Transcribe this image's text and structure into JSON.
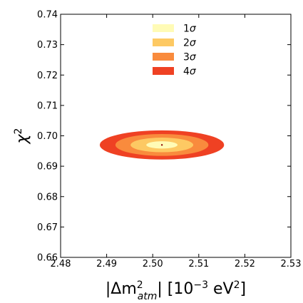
{
  "chart_data": {
    "type": "contour",
    "xlabel": {
      "pre": "|Δm",
      "sup": "2",
      "sub": "atm",
      "post": "| [10",
      "exp": "−3",
      "unit": " eV",
      "unit_sup": "2",
      "close": "]"
    },
    "ylabel": {
      "base": "χ",
      "sup": "2"
    },
    "xlim": [
      2.48,
      2.53
    ],
    "ylim": [
      0.66,
      0.74
    ],
    "xticks": [
      "2.48",
      "2.49",
      "2.50",
      "2.51",
      "2.52",
      "2.53"
    ],
    "yticks": [
      "0.66",
      "0.67",
      "0.68",
      "0.69",
      "0.70",
      "0.71",
      "0.72",
      "0.73",
      "0.74"
    ],
    "best_fit": {
      "x": 2.502,
      "y": 0.697,
      "color": "#8b0000"
    },
    "contours": [
      {
        "name": "4σ",
        "base": "4",
        "sym": "σ",
        "color": "#ef4123",
        "cx": 2.502,
        "cy": 0.697,
        "rx": 0.0135,
        "ry": 0.0048
      },
      {
        "name": "3σ",
        "base": "3",
        "sym": "σ",
        "color": "#f98b3d",
        "cx": 2.502,
        "cy": 0.697,
        "rx": 0.0101,
        "ry": 0.0036
      },
      {
        "name": "2σ",
        "base": "2",
        "sym": "σ",
        "color": "#fdc963",
        "cx": 2.502,
        "cy": 0.697,
        "rx": 0.0068,
        "ry": 0.0024
      },
      {
        "name": "1σ",
        "base": "1",
        "sym": "σ",
        "color": "#fffbb6",
        "cx": 2.502,
        "cy": 0.697,
        "rx": 0.0034,
        "ry": 0.0012
      }
    ],
    "legend": {
      "placement": "top-center",
      "order": [
        "1σ",
        "2σ",
        "3σ",
        "4σ"
      ]
    },
    "grid": false
  }
}
